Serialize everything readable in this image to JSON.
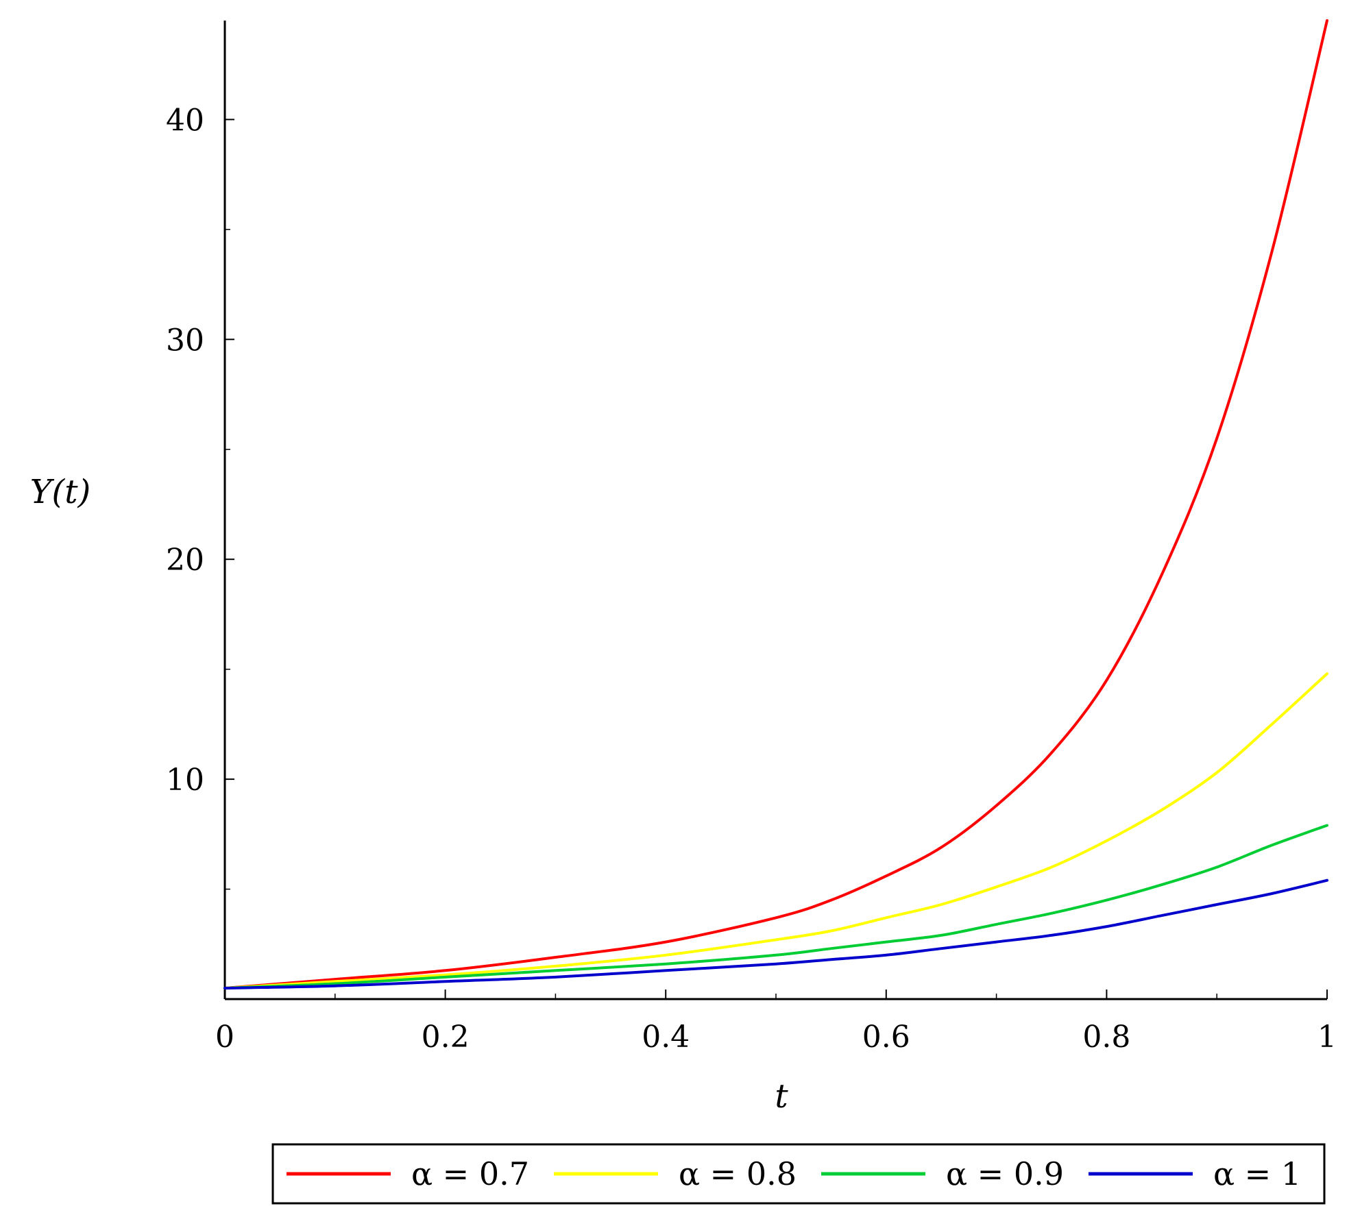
{
  "chart_data": {
    "type": "line",
    "xlabel": "t",
    "ylabel": "Y(t)",
    "xlim": [
      0,
      1
    ],
    "ylim": [
      0,
      44.5
    ],
    "x_ticks": [
      0,
      0.2,
      0.4,
      0.6,
      0.8,
      1
    ],
    "x_tick_labels": [
      "0",
      "0.2",
      "0.4",
      "0.6",
      "0.8",
      "1"
    ],
    "y_ticks": [
      10,
      20,
      30,
      40
    ],
    "y_tick_labels": [
      "10",
      "20",
      "30",
      "40"
    ],
    "grid": false,
    "legend_position": "bottom",
    "x": [
      0,
      0.1,
      0.2,
      0.3,
      0.4,
      0.5,
      0.55,
      0.6,
      0.65,
      0.7,
      0.75,
      0.8,
      0.85,
      0.9,
      0.95,
      1
    ],
    "series": [
      {
        "name": "α = 0.7",
        "color": "#ff0000",
        "values": [
          0.5,
          0.9,
          1.3,
          1.9,
          2.6,
          3.7,
          4.5,
          5.6,
          6.9,
          8.8,
          11.2,
          14.5,
          19.3,
          25.5,
          34.0,
          44.5
        ]
      },
      {
        "name": "α = 0.8",
        "color": "#ffff00",
        "values": [
          0.5,
          0.8,
          1.1,
          1.5,
          2.0,
          2.7,
          3.1,
          3.7,
          4.3,
          5.1,
          6.0,
          7.2,
          8.6,
          10.3,
          12.5,
          14.8
        ]
      },
      {
        "name": "α = 0.9",
        "color": "#00cc33",
        "values": [
          0.5,
          0.7,
          1.0,
          1.3,
          1.6,
          2.0,
          2.3,
          2.6,
          2.9,
          3.4,
          3.9,
          4.5,
          5.2,
          6.0,
          7.0,
          7.9
        ]
      },
      {
        "name": "α = 1",
        "color": "#0000cc",
        "values": [
          0.5,
          0.6,
          0.8,
          1.0,
          1.3,
          1.6,
          1.8,
          2.0,
          2.3,
          2.6,
          2.9,
          3.3,
          3.8,
          4.3,
          4.8,
          5.4
        ]
      }
    ]
  }
}
